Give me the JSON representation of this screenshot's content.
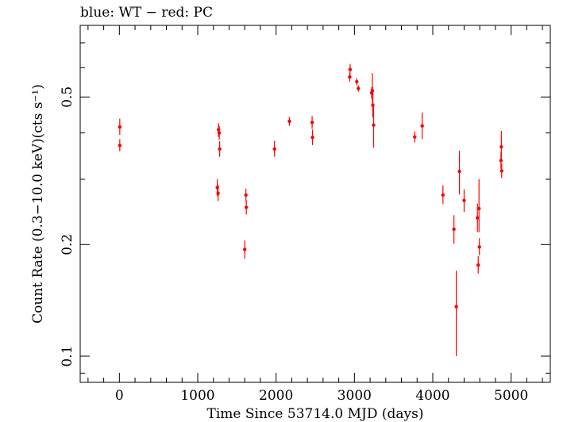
{
  "header": {
    "title": "blue: WT − red: PC"
  },
  "chart_data": {
    "type": "scatter",
    "title": "blue: WT − red: PC",
    "xlabel": "Time Since 53714.0 MJD (days)",
    "ylabel": "Count Rate (0.3−10.0 keV)(cts s⁻¹)",
    "xscale": "linear",
    "yscale": "log",
    "xlim": [
      -500,
      5500
    ],
    "ylim": [
      0.085,
      0.78
    ],
    "xticks": [
      0,
      1000,
      2000,
      3000,
      4000,
      5000
    ],
    "xtick_labels": [
      "0",
      "1000",
      "2000",
      "3000",
      "4000",
      "5000"
    ],
    "yticks": [
      0.1,
      0.2,
      0.5
    ],
    "ytick_labels": [
      "0.1",
      "0.2",
      "0.5"
    ],
    "grid": false,
    "colors": {
      "PC": "#ff0000",
      "WT": "#0000ff",
      "axes": "#000000"
    },
    "series": [
      {
        "name": "PC",
        "color": "#ff0000",
        "points": [
          {
            "x": 5,
            "y": 0.415,
            "ylo": 0.395,
            "yhi": 0.437
          },
          {
            "x": 5,
            "y": 0.37,
            "ylo": 0.357,
            "yhi": 0.385
          },
          {
            "x": 1250,
            "y": 0.285,
            "ylo": 0.27,
            "yhi": 0.3
          },
          {
            "x": 1260,
            "y": 0.275,
            "ylo": 0.262,
            "yhi": 0.29
          },
          {
            "x": 1265,
            "y": 0.408,
            "ylo": 0.39,
            "yhi": 0.425
          },
          {
            "x": 1275,
            "y": 0.4,
            "ylo": 0.383,
            "yhi": 0.418
          },
          {
            "x": 1280,
            "y": 0.362,
            "ylo": 0.345,
            "yhi": 0.38
          },
          {
            "x": 1600,
            "y": 0.194,
            "ylo": 0.183,
            "yhi": 0.205
          },
          {
            "x": 1615,
            "y": 0.272,
            "ylo": 0.262,
            "yhi": 0.283
          },
          {
            "x": 1620,
            "y": 0.252,
            "ylo": 0.241,
            "yhi": 0.263
          },
          {
            "x": 1980,
            "y": 0.362,
            "ylo": 0.345,
            "yhi": 0.381
          },
          {
            "x": 2170,
            "y": 0.43,
            "ylo": 0.418,
            "yhi": 0.442
          },
          {
            "x": 2460,
            "y": 0.427,
            "ylo": 0.41,
            "yhi": 0.444
          },
          {
            "x": 2465,
            "y": 0.389,
            "ylo": 0.371,
            "yhi": 0.408
          },
          {
            "x": 2940,
            "y": 0.566,
            "ylo": 0.55,
            "yhi": 0.582
          },
          {
            "x": 2945,
            "y": 0.593,
            "ylo": 0.573,
            "yhi": 0.614
          },
          {
            "x": 3030,
            "y": 0.55,
            "ylo": 0.538,
            "yhi": 0.562
          },
          {
            "x": 3050,
            "y": 0.527,
            "ylo": 0.517,
            "yhi": 0.537
          },
          {
            "x": 3220,
            "y": 0.513,
            "ylo": 0.495,
            "yhi": 0.532
          },
          {
            "x": 3230,
            "y": 0.52,
            "ylo": 0.47,
            "yhi": 0.58
          },
          {
            "x": 3235,
            "y": 0.475,
            "ylo": 0.44,
            "yhi": 0.515
          },
          {
            "x": 3245,
            "y": 0.42,
            "ylo": 0.365,
            "yhi": 0.48
          },
          {
            "x": 3770,
            "y": 0.39,
            "ylo": 0.377,
            "yhi": 0.404
          },
          {
            "x": 3865,
            "y": 0.418,
            "ylo": 0.385,
            "yhi": 0.454
          },
          {
            "x": 4130,
            "y": 0.272,
            "ylo": 0.257,
            "yhi": 0.289
          },
          {
            "x": 4270,
            "y": 0.22,
            "ylo": 0.201,
            "yhi": 0.24
          },
          {
            "x": 4300,
            "y": 0.136,
            "ylo": 0.1,
            "yhi": 0.17
          },
          {
            "x": 4340,
            "y": 0.315,
            "ylo": 0.273,
            "yhi": 0.358
          },
          {
            "x": 4400,
            "y": 0.263,
            "ylo": 0.245,
            "yhi": 0.282
          },
          {
            "x": 4570,
            "y": 0.236,
            "ylo": 0.216,
            "yhi": 0.258
          },
          {
            "x": 4580,
            "y": 0.176,
            "ylo": 0.167,
            "yhi": 0.186
          },
          {
            "x": 4590,
            "y": 0.25,
            "ylo": 0.216,
            "yhi": 0.3
          },
          {
            "x": 4595,
            "y": 0.197,
            "ylo": 0.187,
            "yhi": 0.208
          },
          {
            "x": 4870,
            "y": 0.337,
            "ylo": 0.32,
            "yhi": 0.355
          },
          {
            "x": 4875,
            "y": 0.367,
            "ylo": 0.335,
            "yhi": 0.405
          },
          {
            "x": 4880,
            "y": 0.316,
            "ylo": 0.302,
            "yhi": 0.331
          }
        ]
      }
    ]
  }
}
